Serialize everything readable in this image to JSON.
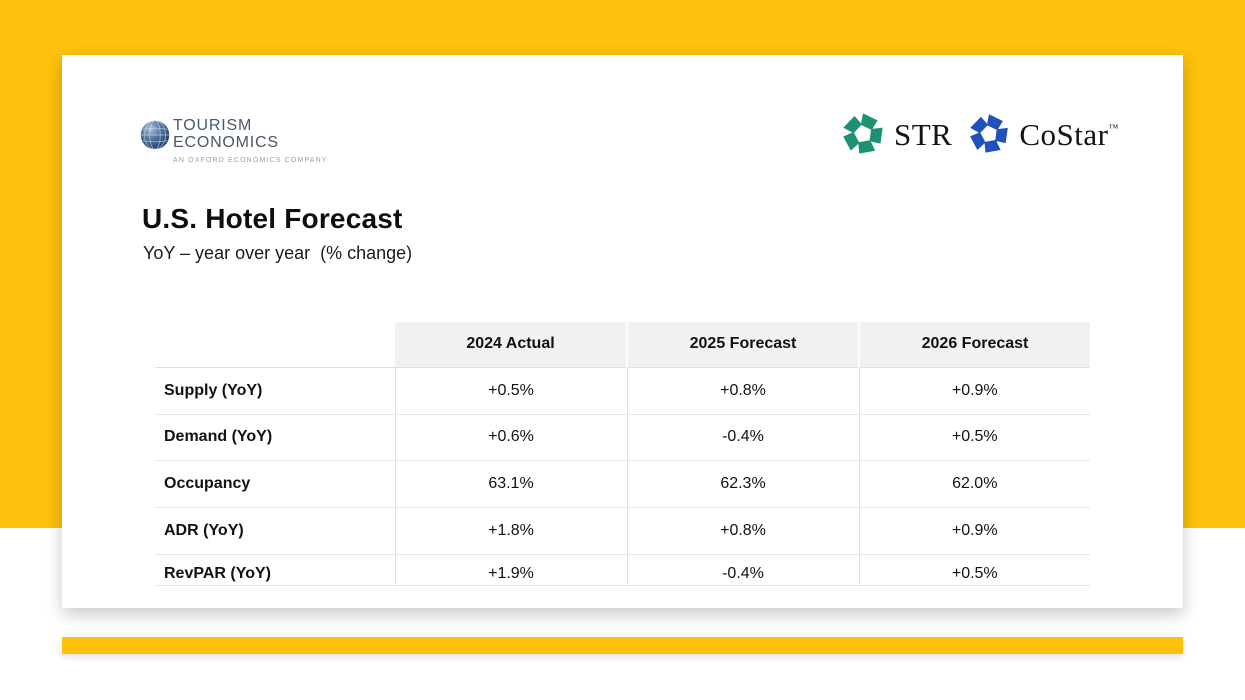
{
  "page": {
    "background": "#FFFFFF",
    "accent_yellow": "#FEC10D"
  },
  "slide": {
    "title": "U.S. Hotel Forecast",
    "subtitle": "YoY – year over year  (% change)",
    "tourism_economics_logo": {
      "icon": "globe-icon",
      "line1": "TOURISM",
      "line2": "ECONOMICS",
      "tagline": "AN OXFORD ECONOMICS COMPANY",
      "wordmark_color": "#49586A",
      "tagline_color": "#96A0A9"
    },
    "partner_logos": [
      {
        "icon": "str-pinwheel-icon",
        "label": "STR",
        "icon_color": "#1F9173"
      },
      {
        "icon": "costar-pinwheel-icon",
        "label": "CoStar",
        "trademark": "™",
        "icon_color": "#2152BC"
      }
    ],
    "table": {
      "columns": [
        "2024 Actual",
        "2025 Forecast",
        "2026 Forecast"
      ],
      "rows": [
        {
          "label": "Supply (YoY)",
          "values": [
            "+0.5%",
            "+0.8%",
            "+0.9%"
          ]
        },
        {
          "label": "Demand (YoY)",
          "values": [
            "+0.6%",
            "-0.4%",
            "+0.5%"
          ]
        },
        {
          "label": "Occupancy",
          "values": [
            "63.1%",
            "62.3%",
            "62.0%"
          ]
        },
        {
          "label": "ADR (YoY)",
          "values": [
            "+1.8%",
            "+0.8%",
            "+0.9%"
          ]
        },
        {
          "label": "RevPAR (YoY)",
          "values": [
            "+1.9%",
            "-0.4%",
            "+0.5%"
          ]
        }
      ],
      "header_bg": "#F1F1F2"
    }
  }
}
